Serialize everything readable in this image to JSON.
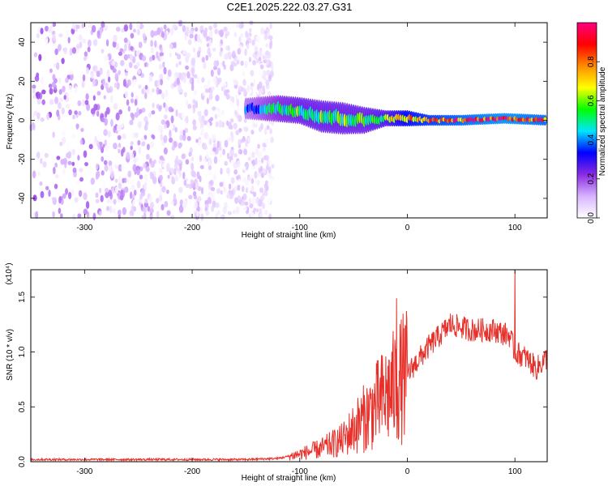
{
  "figure_title": "C2E1.2025.222.03.27.G31",
  "chart_data": [
    {
      "type": "heatmap",
      "title": "C2E1.2025.222.03.27.G31",
      "xlabel": "Height of straight line (km)",
      "ylabel": "Frequency (Hz)",
      "xlim": [
        -350,
        130
      ],
      "ylim": [
        -50,
        50
      ],
      "x_ticks": [
        -300,
        -200,
        -100,
        0,
        100
      ],
      "x_tick_labels": [
        "-300",
        "-200",
        "-100",
        "0",
        "100"
      ],
      "y_ticks": [
        -40,
        -20,
        0,
        20,
        40
      ],
      "y_tick_labels": [
        "-40",
        "-20",
        "0",
        "20",
        "40"
      ],
      "colorbar": {
        "label": "Normalized spectral amplitude",
        "range": [
          0,
          1
        ],
        "ticks": [
          0.0,
          0.2,
          0.4,
          0.6,
          0.8
        ],
        "tick_labels": [
          "0.0",
          "0.2",
          "0.4",
          "0.6",
          "0.8"
        ],
        "colors": [
          "#ffffff",
          "#d8b4ff",
          "#8a2be2",
          "#0000ff",
          "#00e5ff",
          "#00ff00",
          "#ffff00",
          "#ff8c00",
          "#ff0000",
          "#ff0080"
        ]
      },
      "noise_region_x": [
        -350,
        -130
      ],
      "noise_amplitude": 0.15,
      "signal_ridge": [
        {
          "x": -150,
          "f": 6,
          "width_hz": 4,
          "amp": 0.35
        },
        {
          "x": -120,
          "f": 6,
          "width_hz": 5,
          "amp": 0.5
        },
        {
          "x": -100,
          "f": 5,
          "width_hz": 5,
          "amp": 0.55
        },
        {
          "x": -80,
          "f": 2,
          "width_hz": 6,
          "amp": 0.55
        },
        {
          "x": -60,
          "f": 1,
          "width_hz": 6,
          "amp": 0.55
        },
        {
          "x": -40,
          "f": 0,
          "width_hz": 5,
          "amp": 0.55
        },
        {
          "x": -20,
          "f": 1,
          "width_hz": 3,
          "amp": 0.6
        },
        {
          "x": 0,
          "f": 1,
          "width_hz": 3,
          "amp": 0.75
        },
        {
          "x": 20,
          "f": 0,
          "width_hz": 2,
          "amp": 0.8
        },
        {
          "x": 50,
          "f": 0,
          "width_hz": 2,
          "amp": 0.85
        },
        {
          "x": 90,
          "f": 1,
          "width_hz": 2,
          "amp": 0.9
        },
        {
          "x": 130,
          "f": 0,
          "width_hz": 2,
          "amp": 0.85
        }
      ]
    },
    {
      "type": "line",
      "xlabel": "Height of straight line (km)",
      "ylabel": "SNR (10 * v/v)",
      "y_multiplier_label": "(x10⁴)",
      "xlim": [
        -350,
        130
      ],
      "ylim": [
        0,
        1.75
      ],
      "x_ticks": [
        -300,
        -200,
        -100,
        0,
        100
      ],
      "x_tick_labels": [
        "-300",
        "-200",
        "-100",
        "0",
        "100"
      ],
      "y_ticks": [
        0.0,
        0.5,
        1.0,
        1.5
      ],
      "y_tick_labels": [
        "0.0",
        "0.5",
        "1.0",
        "1.5"
      ],
      "line_color": "#e8302a",
      "series": [
        {
          "x": [
            -350,
            -300,
            -250,
            -200,
            -150,
            -120,
            -100,
            -80,
            -60,
            -40,
            -20,
            -10,
            0,
            20,
            40,
            60,
            80,
            95,
            100,
            110,
            120,
            130
          ],
          "y": [
            0.02,
            0.02,
            0.02,
            0.02,
            0.02,
            0.03,
            0.07,
            0.12,
            0.2,
            0.4,
            0.6,
            0.7,
            0.8,
            1.05,
            1.25,
            1.2,
            1.2,
            1.15,
            1.0,
            0.95,
            0.85,
            0.95
          ]
        }
      ],
      "peaks": [
        {
          "x": -10,
          "y": 1.49
        },
        {
          "x": 40,
          "y": 1.35
        },
        {
          "x": 100,
          "y": 1.75
        }
      ]
    }
  ]
}
